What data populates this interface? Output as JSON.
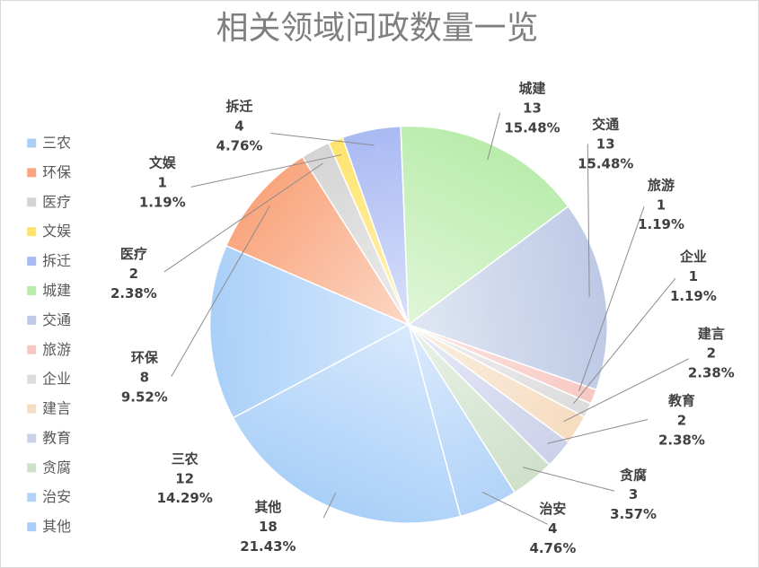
{
  "chart_data": {
    "type": "pie",
    "title": "相关领域问政数量一览",
    "legend_position": "left",
    "series": [
      {
        "name": "三农",
        "value": 12,
        "percent": "14.29%",
        "color": "#a9cff8"
      },
      {
        "name": "环保",
        "value": 8,
        "percent": "9.52%",
        "color": "#f9a57d"
      },
      {
        "name": "医疗",
        "value": 2,
        "percent": "2.38%",
        "color": "#d4d4d4"
      },
      {
        "name": "文娱",
        "value": 1,
        "percent": "1.19%",
        "color": "#ffe36b"
      },
      {
        "name": "拆迁",
        "value": 4,
        "percent": "4.76%",
        "color": "#a9b9f3"
      },
      {
        "name": "城建",
        "value": 13,
        "percent": "15.48%",
        "color": "#b9ecab"
      },
      {
        "name": "交通",
        "value": 13,
        "percent": "15.48%",
        "color": "#bdc9e5"
      },
      {
        "name": "旅游",
        "value": 1,
        "percent": "1.19%",
        "color": "#f7c8c3"
      },
      {
        "name": "企业",
        "value": 1,
        "percent": "1.19%",
        "color": "#dcdcdc"
      },
      {
        "name": "建言",
        "value": 2,
        "percent": "2.38%",
        "color": "#f6dcc0"
      },
      {
        "name": "教育",
        "value": 2,
        "percent": "2.38%",
        "color": "#ccd1ea"
      },
      {
        "name": "贪腐",
        "value": 3,
        "percent": "3.57%",
        "color": "#cfe0c9"
      },
      {
        "name": "治安",
        "value": 4,
        "percent": "4.76%",
        "color": "#b2d3f8"
      },
      {
        "name": "其他",
        "value": 18,
        "percent": "21.43%",
        "color": "#a9cff8"
      }
    ]
  }
}
